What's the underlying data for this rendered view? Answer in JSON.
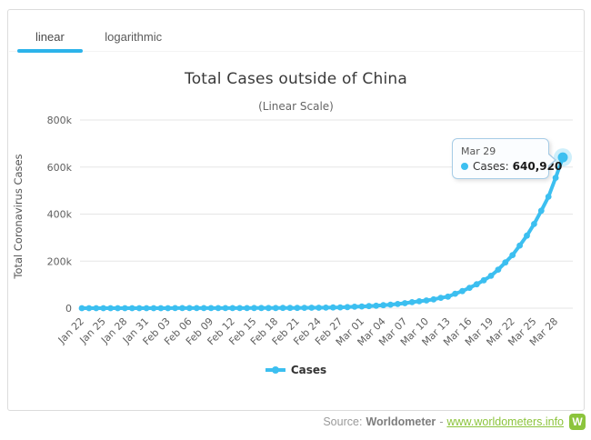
{
  "tabs": {
    "linear": "linear",
    "logarithmic": "logarithmic",
    "active": "linear"
  },
  "chart": {
    "title": "Total Cases outside of China",
    "subtitle": "(Linear Scale)"
  },
  "tooltip": {
    "date": "Mar 29",
    "series_label": "Cases:",
    "value": "640,920"
  },
  "legend": {
    "label": "Cases"
  },
  "footer": {
    "source_label": "Source:",
    "source_name": "Worldometer",
    "separator": "-",
    "link_text": "www.worldometers.info",
    "logo_letter": "W"
  },
  "colors": {
    "accent_tab": "#2cb3ea",
    "series": "#3cbff0",
    "grid": "#e6e6e6",
    "axis_text": "#606060",
    "axis_title_text": "#555555",
    "link_green": "#8cc43c",
    "tooltip_border": "#a6cce6"
  },
  "chart_data": {
    "type": "line",
    "title": "Total Cases outside of China",
    "subtitle": "(Linear Scale)",
    "xlabel": "",
    "ylabel": "Total Coronavirus Cases",
    "ylim": [
      0,
      800000
    ],
    "grid": "horizontal",
    "legend_position": "bottom-center",
    "x_tick_every": 3,
    "yticks": [
      {
        "v": 0,
        "label": "0"
      },
      {
        "v": 200000,
        "label": "200k"
      },
      {
        "v": 400000,
        "label": "400k"
      },
      {
        "v": 600000,
        "label": "600k"
      },
      {
        "v": 800000,
        "label": "800k"
      }
    ],
    "x": [
      "Jan 22",
      "Jan 23",
      "Jan 24",
      "Jan 25",
      "Jan 26",
      "Jan 27",
      "Jan 28",
      "Jan 29",
      "Jan 30",
      "Jan 31",
      "Feb 01",
      "Feb 02",
      "Feb 03",
      "Feb 04",
      "Feb 05",
      "Feb 06",
      "Feb 07",
      "Feb 08",
      "Feb 09",
      "Feb 10",
      "Feb 11",
      "Feb 12",
      "Feb 13",
      "Feb 14",
      "Feb 15",
      "Feb 16",
      "Feb 17",
      "Feb 18",
      "Feb 19",
      "Feb 20",
      "Feb 21",
      "Feb 22",
      "Feb 23",
      "Feb 24",
      "Feb 25",
      "Feb 26",
      "Feb 27",
      "Feb 28",
      "Feb 29",
      "Mar 01",
      "Mar 02",
      "Mar 03",
      "Mar 04",
      "Mar 05",
      "Mar 06",
      "Mar 07",
      "Mar 08",
      "Mar 09",
      "Mar 10",
      "Mar 11",
      "Mar 12",
      "Mar 13",
      "Mar 14",
      "Mar 15",
      "Mar 16",
      "Mar 17",
      "Mar 18",
      "Mar 19",
      "Mar 20",
      "Mar 21",
      "Mar 22",
      "Mar 23",
      "Mar 24",
      "Mar 25",
      "Mar 26",
      "Mar 27",
      "Mar 28",
      "Mar 29"
    ],
    "series": [
      {
        "name": "Cases",
        "color": "#3cbff0",
        "values": [
          9,
          14,
          25,
          40,
          57,
          64,
          87,
          105,
          118,
          153,
          173,
          183,
          188,
          212,
          227,
          265,
          288,
          307,
          319,
          395,
          441,
          456,
          528,
          561,
          604,
          683,
          804,
          880,
          1013,
          1097,
          1200,
          1402,
          1769,
          2069,
          2459,
          2930,
          3664,
          4691,
          6009,
          7169,
          8774,
          10566,
          12747,
          14905,
          17873,
          21397,
          25404,
          29256,
          32778,
          37371,
          44067,
          49219,
          61518,
          72813,
          86434,
          101657,
          118596,
          137656,
          163930,
          194285,
          225796,
          266156,
          308458,
          357799,
          414240,
          473924,
          554248,
          640920
        ]
      }
    ],
    "highlighted_point": {
      "x": "Mar 29",
      "value": 640920
    }
  }
}
